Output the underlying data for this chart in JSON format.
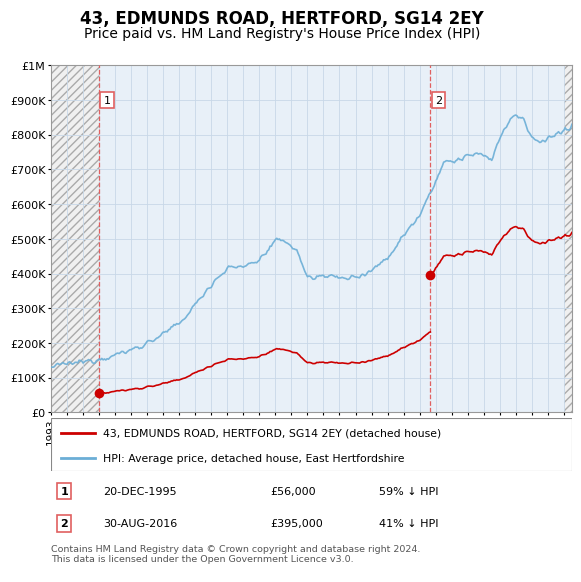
{
  "title": "43, EDMUNDS ROAD, HERTFORD, SG14 2EY",
  "subtitle": "Price paid vs. HM Land Registry's House Price Index (HPI)",
  "legend_line1": "43, EDMUNDS ROAD, HERTFORD, SG14 2EY (detached house)",
  "legend_line2": "HPI: Average price, detached house, East Hertfordshire",
  "footnote": "Contains HM Land Registry data © Crown copyright and database right 2024.\nThis data is licensed under the Open Government Licence v3.0.",
  "point1_date": "20-DEC-1995",
  "point1_price": "£56,000",
  "point1_hpi": "59% ↓ HPI",
  "point1_year": 1995.97,
  "point1_value": 56000,
  "point2_date": "30-AUG-2016",
  "point2_price": "£395,000",
  "point2_hpi": "41% ↓ HPI",
  "point2_year": 2016.66,
  "point2_value": 395000,
  "hpi_color": "#6baed6",
  "price_color": "#cc0000",
  "vline_color": "#e06060",
  "hatch_color": "#d0d0d0",
  "grid_color": "#c8d8e8",
  "plot_bg": "#ffffff",
  "hatch_bg": "#e8e8e8",
  "ylim_min": 0,
  "ylim_max": 1000000,
  "xlim_min": 1993,
  "xlim_max": 2025.5,
  "title_fontsize": 12,
  "subtitle_fontsize": 10,
  "tick_fontsize": 7.5,
  "ytick_fontsize": 8
}
